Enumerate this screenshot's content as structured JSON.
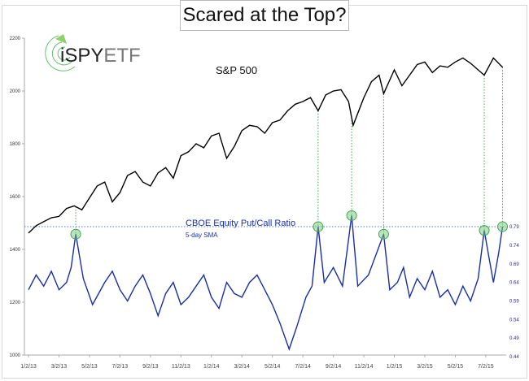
{
  "chart_data": {
    "type": "line",
    "title": "Scared at the Top?",
    "logo_text": "iSPYETF",
    "x_unit": "months since 1/2/13",
    "x_ticks": [
      0,
      2,
      4,
      6,
      8,
      10,
      12,
      14,
      16,
      18,
      20,
      22,
      24,
      26,
      28,
      30
    ],
    "x_tick_labels": [
      "1/2/13",
      "3/2/13",
      "5/2/13",
      "7/2/13",
      "9/2/13",
      "11/2/13",
      "1/2/14",
      "3/2/14",
      "5/2/14",
      "7/2/14",
      "9/2/14",
      "11/2/14",
      "1/2/15",
      "3/2/15",
      "5/2/15",
      "7/2/15"
    ],
    "y_left": {
      "ticks": [
        1000,
        1200,
        1400,
        1600,
        1800,
        2000,
        2200
      ],
      "labels": [
        "1000",
        "1200",
        "1400",
        "1600",
        "1800",
        "2000",
        "2200"
      ],
      "range": [
        1000,
        2200
      ]
    },
    "y_right": {
      "ticks": [
        0.44,
        0.49,
        0.54,
        0.59,
        0.64,
        0.69,
        0.74,
        0.79
      ],
      "labels": [
        "0.44",
        "0.49",
        "0.54",
        "0.59",
        "0.64",
        "0.69",
        "0.74",
        "0.79"
      ],
      "range": [
        0.44,
        0.79
      ]
    },
    "series": [
      {
        "name": "S&P 500",
        "axis": "left",
        "color": "#000000",
        "points": [
          [
            0,
            1462
          ],
          [
            0.5,
            1490
          ],
          [
            1,
            1505
          ],
          [
            1.5,
            1520
          ],
          [
            2,
            1525
          ],
          [
            2.5,
            1555
          ],
          [
            3,
            1565
          ],
          [
            3.5,
            1550
          ],
          [
            4,
            1595
          ],
          [
            4.5,
            1640
          ],
          [
            5,
            1655
          ],
          [
            5.5,
            1580
          ],
          [
            6,
            1615
          ],
          [
            6.5,
            1680
          ],
          [
            7,
            1695
          ],
          [
            7.5,
            1655
          ],
          [
            8,
            1640
          ],
          [
            8.5,
            1690
          ],
          [
            9,
            1710
          ],
          [
            9.5,
            1670
          ],
          [
            10,
            1755
          ],
          [
            10.5,
            1770
          ],
          [
            11,
            1800
          ],
          [
            11.5,
            1785
          ],
          [
            12,
            1830
          ],
          [
            12.5,
            1840
          ],
          [
            13,
            1745
          ],
          [
            13.5,
            1790
          ],
          [
            14,
            1850
          ],
          [
            14.5,
            1870
          ],
          [
            15,
            1865
          ],
          [
            15.5,
            1840
          ],
          [
            16,
            1880
          ],
          [
            16.5,
            1890
          ],
          [
            17,
            1925
          ],
          [
            17.5,
            1950
          ],
          [
            18,
            1960
          ],
          [
            18.5,
            1975
          ],
          [
            19,
            1925
          ],
          [
            19.5,
            1985
          ],
          [
            20,
            2000
          ],
          [
            20.5,
            2005
          ],
          [
            21,
            1960
          ],
          [
            21.3,
            1870
          ],
          [
            22,
            1975
          ],
          [
            22.5,
            2035
          ],
          [
            23,
            2060
          ],
          [
            23.3,
            1990
          ],
          [
            24,
            2080
          ],
          [
            24.5,
            2020
          ],
          [
            25,
            2060
          ],
          [
            25.5,
            2100
          ],
          [
            26,
            2110
          ],
          [
            26.5,
            2070
          ],
          [
            27,
            2095
          ],
          [
            27.5,
            2090
          ],
          [
            28,
            2110
          ],
          [
            28.5,
            2125
          ],
          [
            29,
            2105
          ],
          [
            29.5,
            2080
          ],
          [
            29.9,
            2060
          ],
          [
            30.5,
            2125
          ],
          [
            31.1,
            2090
          ]
        ]
      },
      {
        "name": "CBOE Equity Put/Call Ratio",
        "subtitle": "5-day SMA",
        "axis": "right",
        "color": "#1a2ea8",
        "points": [
          [
            0,
            0.62
          ],
          [
            0.5,
            0.66
          ],
          [
            1,
            0.63
          ],
          [
            1.5,
            0.67
          ],
          [
            2,
            0.62
          ],
          [
            2.5,
            0.64
          ],
          [
            2.8,
            0.68
          ],
          [
            3.1,
            0.77
          ],
          [
            3.6,
            0.65
          ],
          [
            4.2,
            0.58
          ],
          [
            5,
            0.64
          ],
          [
            5.5,
            0.67
          ],
          [
            6,
            0.62
          ],
          [
            6.5,
            0.59
          ],
          [
            7,
            0.63
          ],
          [
            7.5,
            0.66
          ],
          [
            8,
            0.61
          ],
          [
            8.5,
            0.55
          ],
          [
            9,
            0.61
          ],
          [
            9.5,
            0.64
          ],
          [
            10,
            0.58
          ],
          [
            10.5,
            0.6
          ],
          [
            11,
            0.63
          ],
          [
            11.5,
            0.66
          ],
          [
            12,
            0.6
          ],
          [
            12.5,
            0.57
          ],
          [
            13,
            0.64
          ],
          [
            13.5,
            0.61
          ],
          [
            14,
            0.6
          ],
          [
            14.5,
            0.64
          ],
          [
            15,
            0.66
          ],
          [
            15.5,
            0.62
          ],
          [
            16,
            0.58
          ],
          [
            16.5,
            0.53
          ],
          [
            17.1,
            0.46
          ],
          [
            17.6,
            0.52
          ],
          [
            18.2,
            0.6
          ],
          [
            18.6,
            0.63
          ],
          [
            19,
            0.79
          ],
          [
            19.4,
            0.64
          ],
          [
            20,
            0.68
          ],
          [
            20.6,
            0.63
          ],
          [
            21.2,
            0.82
          ],
          [
            21.6,
            0.63
          ],
          [
            22.3,
            0.66
          ],
          [
            23.3,
            0.77
          ],
          [
            23.7,
            0.62
          ],
          [
            24.2,
            0.64
          ],
          [
            24.6,
            0.68
          ],
          [
            25,
            0.6
          ],
          [
            25.5,
            0.65
          ],
          [
            26,
            0.62
          ],
          [
            26.5,
            0.67
          ],
          [
            27,
            0.6
          ],
          [
            27.5,
            0.62
          ],
          [
            28,
            0.58
          ],
          [
            28.5,
            0.63
          ],
          [
            29,
            0.59
          ],
          [
            29.5,
            0.65
          ],
          [
            29.9,
            0.78
          ],
          [
            30.2,
            0.71
          ],
          [
            30.5,
            0.64
          ],
          [
            30.85,
            0.72
          ],
          [
            31.1,
            0.79
          ]
        ]
      }
    ],
    "annotations": {
      "threshold": 0.79,
      "peaks": [
        3.1,
        19,
        21.2,
        23.3,
        29.9,
        31.1
      ],
      "sp_label": "S&P 500",
      "pc_label": "CBOE Equity Put/Call Ratio",
      "pc_sublabel": "5-day SMA"
    },
    "colors": {
      "highlight": "#3aa84a",
      "left_axis": "#333333",
      "right_axis": "#2a2a8a"
    }
  }
}
